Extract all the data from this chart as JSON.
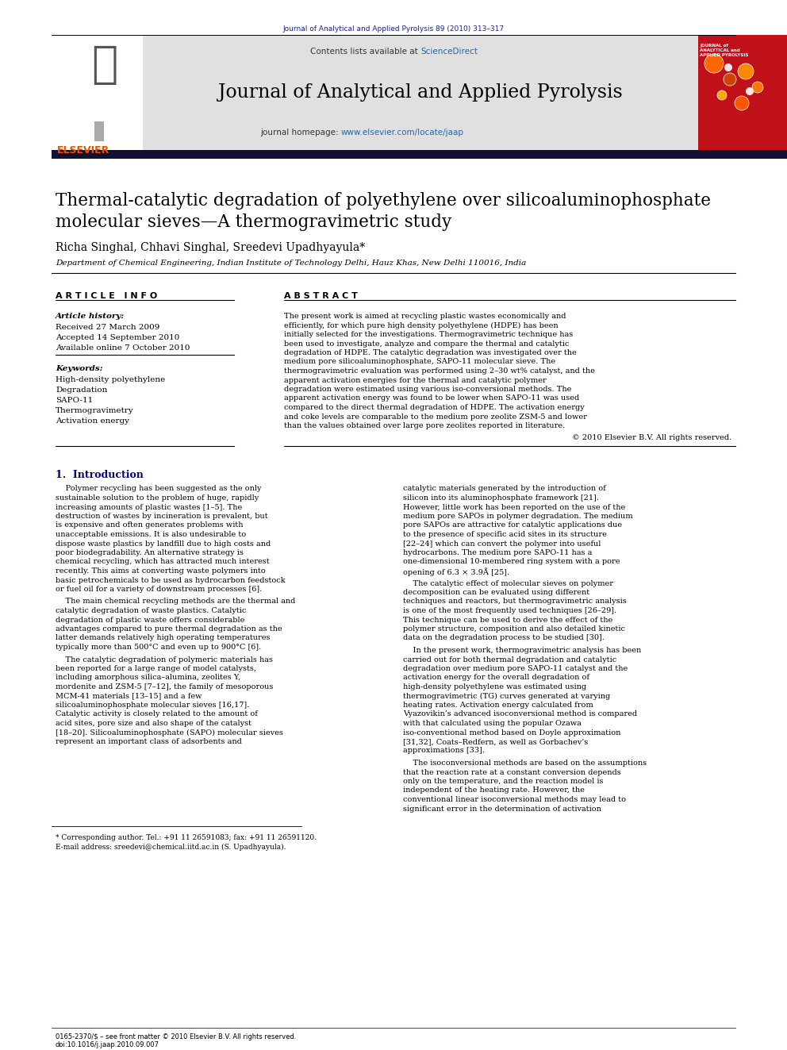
{
  "journal_ref": "Journal of Analytical and Applied Pyrolysis 89 (2010) 313–317",
  "journal_name": "Journal of Analytical and Applied Pyrolysis",
  "journal_homepage_pre": "journal homepage: ",
  "journal_homepage_url": "www.elsevier.com/locate/jaap",
  "contents_pre": "Contents lists available at ",
  "contents_link": "ScienceDirect",
  "title_line1": "Thermal-catalytic degradation of polyethylene over silicoaluminophosphate",
  "title_line2": "molecular sieves—A thermogravimetric study",
  "authors": "Richa Singhal, Chhavi Singhal, Sreedevi Upadhyayula*",
  "affiliation": "Department of Chemical Engineering, Indian Institute of Technology Delhi, Hauz Khas, New Delhi 110016, India",
  "article_info_header": "A R T I C L E   I N F O",
  "abstract_header": "A B S T R A C T",
  "article_history_label": "Article history:",
  "received": "Received 27 March 2009",
  "accepted": "Accepted 14 September 2010",
  "available": "Available online 7 October 2010",
  "keywords_label": "Keywords:",
  "keywords": [
    "High-density polyethylene",
    "Degradation",
    "SAPO-11",
    "Thermogravimetry",
    "Activation energy"
  ],
  "abstract_text": "The present work is aimed at recycling plastic wastes economically and efficiently, for which pure high density polyethylene (HDPE) has been initially selected for the investigations. Thermogravimetric technique has been used to investigate, analyze and compare the thermal and catalytic degradation of HDPE. The catalytic degradation was investigated over the medium pore silicoaluminophosphate, SAPO-11 molecular sieve. The thermogravimetric evaluation was performed using 2–30 wt% catalyst, and the apparent activation energies for the thermal and catalytic polymer degradation were estimated using various iso-conversional methods. The apparent activation energy was found to be lower when SAPO-11 was used compared to the direct thermal degradation of HDPE. The activation energy and coke levels are comparable to the medium pore zeolite ZSM-5 and lower than the values obtained over large pore zeolites reported in literature.",
  "copyright": "© 2010 Elsevier B.V. All rights reserved.",
  "section1_title": "1.  Introduction",
  "intro_para1": "Polymer recycling has been suggested as the only sustainable solution to the problem of huge, rapidly increasing amounts of plastic wastes [1–5]. The destruction of wastes by incineration is prevalent, but is expensive and often generates problems with unacceptable emissions. It is also undesirable to dispose waste plastics by landfill due to high costs and poor biodegradability. An alternative strategy is chemical recycling, which has attracted much interest recently. This aims at converting waste polymers into basic petrochemicals to be used as hydrocarbon feedstock or fuel oil for a variety of downstream processes [6].",
  "intro_para2": "The main chemical recycling methods are the thermal and catalytic degradation of waste plastics. Catalytic degradation of plastic waste offers considerable advantages compared to pure thermal degradation as the latter demands relatively high operating temperatures typically more than 500°C and even up to 900°C [6].",
  "intro_para3": "The catalytic degradation of polymeric materials has been reported for a large range of model catalysts, including amorphous silica–alumina, zeolites Y, mordenite and ZSM-5 [7–12], the family of mesoporous MCM-41 materials [13–15] and a few silicoaluminophosphate molecular sieves [16,17]. Catalytic activity is closely related to the amount of acid sites, pore size and also shape of the catalyst [18–20]. Silicoaluminophosphate (SAPO) molecular sieves represent an important class of adsorbents and",
  "right_para1": "catalytic materials generated by the introduction of silicon into its aluminophosphate framework [21]. However, little work has been reported on the use of the medium pore SAPOs in polymer degradation. The medium pore SAPOs are attractive for catalytic applications due to the presence of specific acid sites in its structure [22–24] which can convert the polymer into useful hydrocarbons. The medium pore SAPO-11 has a one-dimensional 10-membered ring system with a pore opening of 6.3 × 3.9Å [25].",
  "right_para2": "The catalytic effect of molecular sieves on polymer decomposition can be evaluated using different techniques and reactors, but thermogravimetric analysis is one of the most frequently used techniques [26–29]. This technique can be used to derive the effect of the polymer structure, composition and also detailed kinetic data on the degradation process to be studied [30].",
  "right_para3": "In the present work, thermogravimetric analysis has been carried out for both thermal degradation and catalytic degradation over medium pore SAPO-11 catalyst and the activation energy for the overall degradation of high-density polyethylene was estimated using thermogravimetric (TG) curves generated at varying heating rates. Activation energy calculated from Vyazovikin’s advanced isoconversional method is compared with that calculated using the popular Ozawa iso-conventional method based on Doyle approximation [31,32], Coats–Redfern, as well as Gorbachev’s approximations [33].",
  "right_para4": "The isoconversional methods are based on the assumptions that the reaction rate at a constant conversion depends only on the temperature, and the reaction model is independent of the heating rate. However, the conventional linear isoconversional methods may lead to significant error in the determination of activation",
  "footnote1": "* Corresponding author. Tel.: +91 11 26591083; fax: +91 11 26591120.",
  "footnote2": "E-mail address: sreedevi@chemical.iitd.ac.in (S. Upadhyayula).",
  "footer_left": "0165-2370/$ – see front matter © 2010 Elsevier B.V. All rights reserved.",
  "footer_doi": "doi:10.1016/j.jaap.2010.09.007",
  "bg_color": "#ffffff",
  "header_bg": "#e0e0e0",
  "dark_bar_color": "#1a1a2e",
  "blue_color": "#1a237e",
  "link_color": "#2166ac",
  "elsevier_orange": "#e65100",
  "section_title_color": "#000080",
  "cover_red": "#c0111a"
}
